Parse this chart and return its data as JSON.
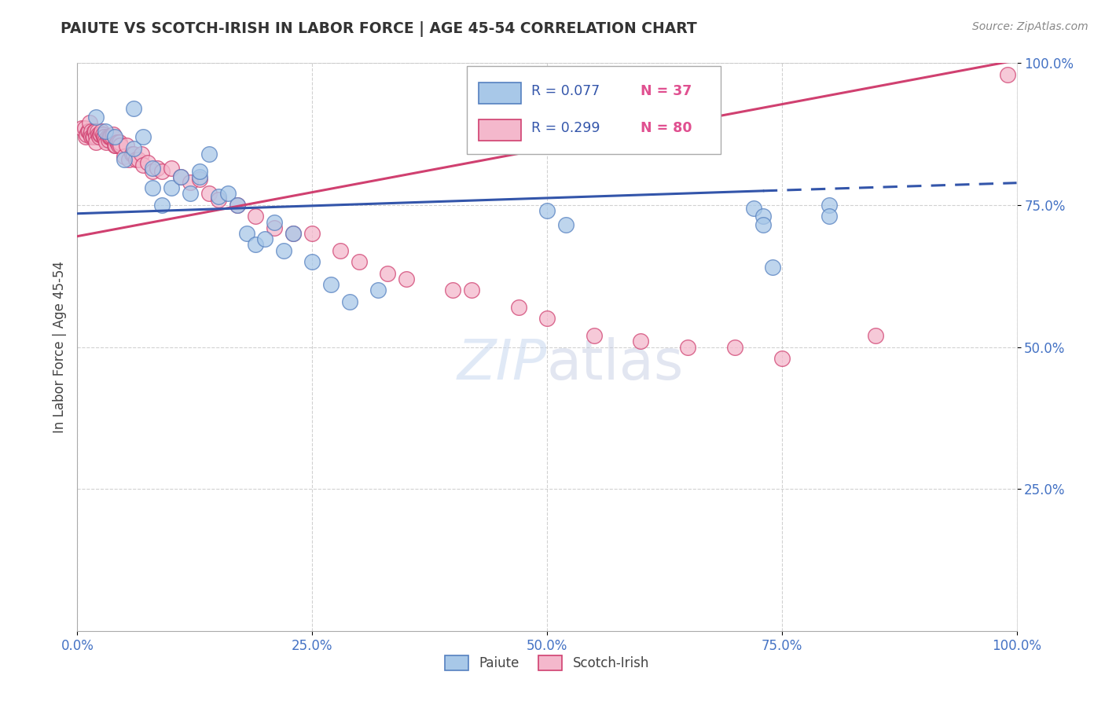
{
  "title": "PAIUTE VS SCOTCH-IRISH IN LABOR FORCE | AGE 45-54 CORRELATION CHART",
  "source": "Source: ZipAtlas.com",
  "ylabel": "In Labor Force | Age 45-54",
  "xlim": [
    0.0,
    1.0
  ],
  "ylim": [
    0.0,
    1.0
  ],
  "xticks": [
    0.0,
    0.25,
    0.5,
    0.75,
    1.0
  ],
  "yticks": [
    0.25,
    0.5,
    0.75,
    1.0
  ],
  "xticklabels": [
    "0.0%",
    "25.0%",
    "50.0%",
    "75.0%",
    "100.0%"
  ],
  "yticklabels": [
    "25.0%",
    "50.0%",
    "75.0%",
    "100.0%"
  ],
  "paiute_color": "#a8c8e8",
  "scotch_color": "#f4b8cc",
  "paiute_edge_color": "#5580c0",
  "scotch_edge_color": "#d04070",
  "paiute_line_color": "#3355aa",
  "scotch_line_color": "#d04070",
  "background_color": "#ffffff",
  "grid_color": "#cccccc",
  "paiute_x": [
    0.02,
    0.03,
    0.04,
    0.05,
    0.06,
    0.06,
    0.07,
    0.08,
    0.08,
    0.09,
    0.1,
    0.11,
    0.12,
    0.13,
    0.13,
    0.14,
    0.15,
    0.16,
    0.17,
    0.18,
    0.19,
    0.2,
    0.21,
    0.22,
    0.23,
    0.25,
    0.27,
    0.29,
    0.32,
    0.5,
    0.52,
    0.72,
    0.73,
    0.73,
    0.74,
    0.8,
    0.8
  ],
  "paiute_y": [
    0.905,
    0.88,
    0.87,
    0.83,
    0.85,
    0.92,
    0.87,
    0.815,
    0.78,
    0.75,
    0.78,
    0.8,
    0.77,
    0.8,
    0.81,
    0.84,
    0.765,
    0.77,
    0.75,
    0.7,
    0.68,
    0.69,
    0.72,
    0.67,
    0.7,
    0.65,
    0.61,
    0.58,
    0.6,
    0.74,
    0.715,
    0.745,
    0.73,
    0.715,
    0.64,
    0.75,
    0.73
  ],
  "scotch_x": [
    0.005,
    0.008,
    0.009,
    0.01,
    0.011,
    0.012,
    0.013,
    0.014,
    0.015,
    0.015,
    0.016,
    0.017,
    0.018,
    0.019,
    0.02,
    0.02,
    0.021,
    0.022,
    0.023,
    0.024,
    0.025,
    0.026,
    0.027,
    0.028,
    0.029,
    0.03,
    0.031,
    0.032,
    0.033,
    0.034,
    0.035,
    0.036,
    0.037,
    0.038,
    0.04,
    0.041,
    0.042,
    0.043,
    0.044,
    0.045,
    0.046,
    0.05,
    0.052,
    0.055,
    0.058,
    0.06,
    0.062,
    0.065,
    0.068,
    0.07,
    0.075,
    0.08,
    0.085,
    0.09,
    0.1,
    0.11,
    0.12,
    0.13,
    0.14,
    0.15,
    0.17,
    0.19,
    0.21,
    0.23,
    0.25,
    0.28,
    0.3,
    0.33,
    0.35,
    0.4,
    0.42,
    0.47,
    0.5,
    0.55,
    0.6,
    0.65,
    0.7,
    0.75,
    0.85,
    0.99
  ],
  "scotch_y": [
    0.885,
    0.885,
    0.87,
    0.875,
    0.88,
    0.88,
    0.895,
    0.875,
    0.88,
    0.87,
    0.87,
    0.87,
    0.88,
    0.88,
    0.87,
    0.86,
    0.88,
    0.875,
    0.87,
    0.875,
    0.875,
    0.88,
    0.875,
    0.87,
    0.87,
    0.865,
    0.86,
    0.87,
    0.865,
    0.87,
    0.87,
    0.87,
    0.87,
    0.875,
    0.855,
    0.855,
    0.86,
    0.86,
    0.855,
    0.86,
    0.855,
    0.835,
    0.855,
    0.83,
    0.84,
    0.84,
    0.83,
    0.83,
    0.84,
    0.82,
    0.825,
    0.81,
    0.815,
    0.81,
    0.815,
    0.8,
    0.79,
    0.795,
    0.77,
    0.76,
    0.75,
    0.73,
    0.71,
    0.7,
    0.7,
    0.67,
    0.65,
    0.63,
    0.62,
    0.6,
    0.6,
    0.57,
    0.55,
    0.52,
    0.51,
    0.5,
    0.5,
    0.48,
    0.52,
    0.98
  ],
  "scotch_line_start_x": 0.0,
  "scotch_line_start_y": 0.695,
  "scotch_line_end_x": 1.0,
  "scotch_line_end_y": 1.005,
  "paiute_line_start_x": 0.0,
  "paiute_line_start_y": 0.735,
  "paiute_line_solid_end_x": 0.73,
  "paiute_line_solid_end_y": 0.775,
  "paiute_line_dashed_end_x": 1.0,
  "paiute_line_dashed_end_y": 0.789
}
